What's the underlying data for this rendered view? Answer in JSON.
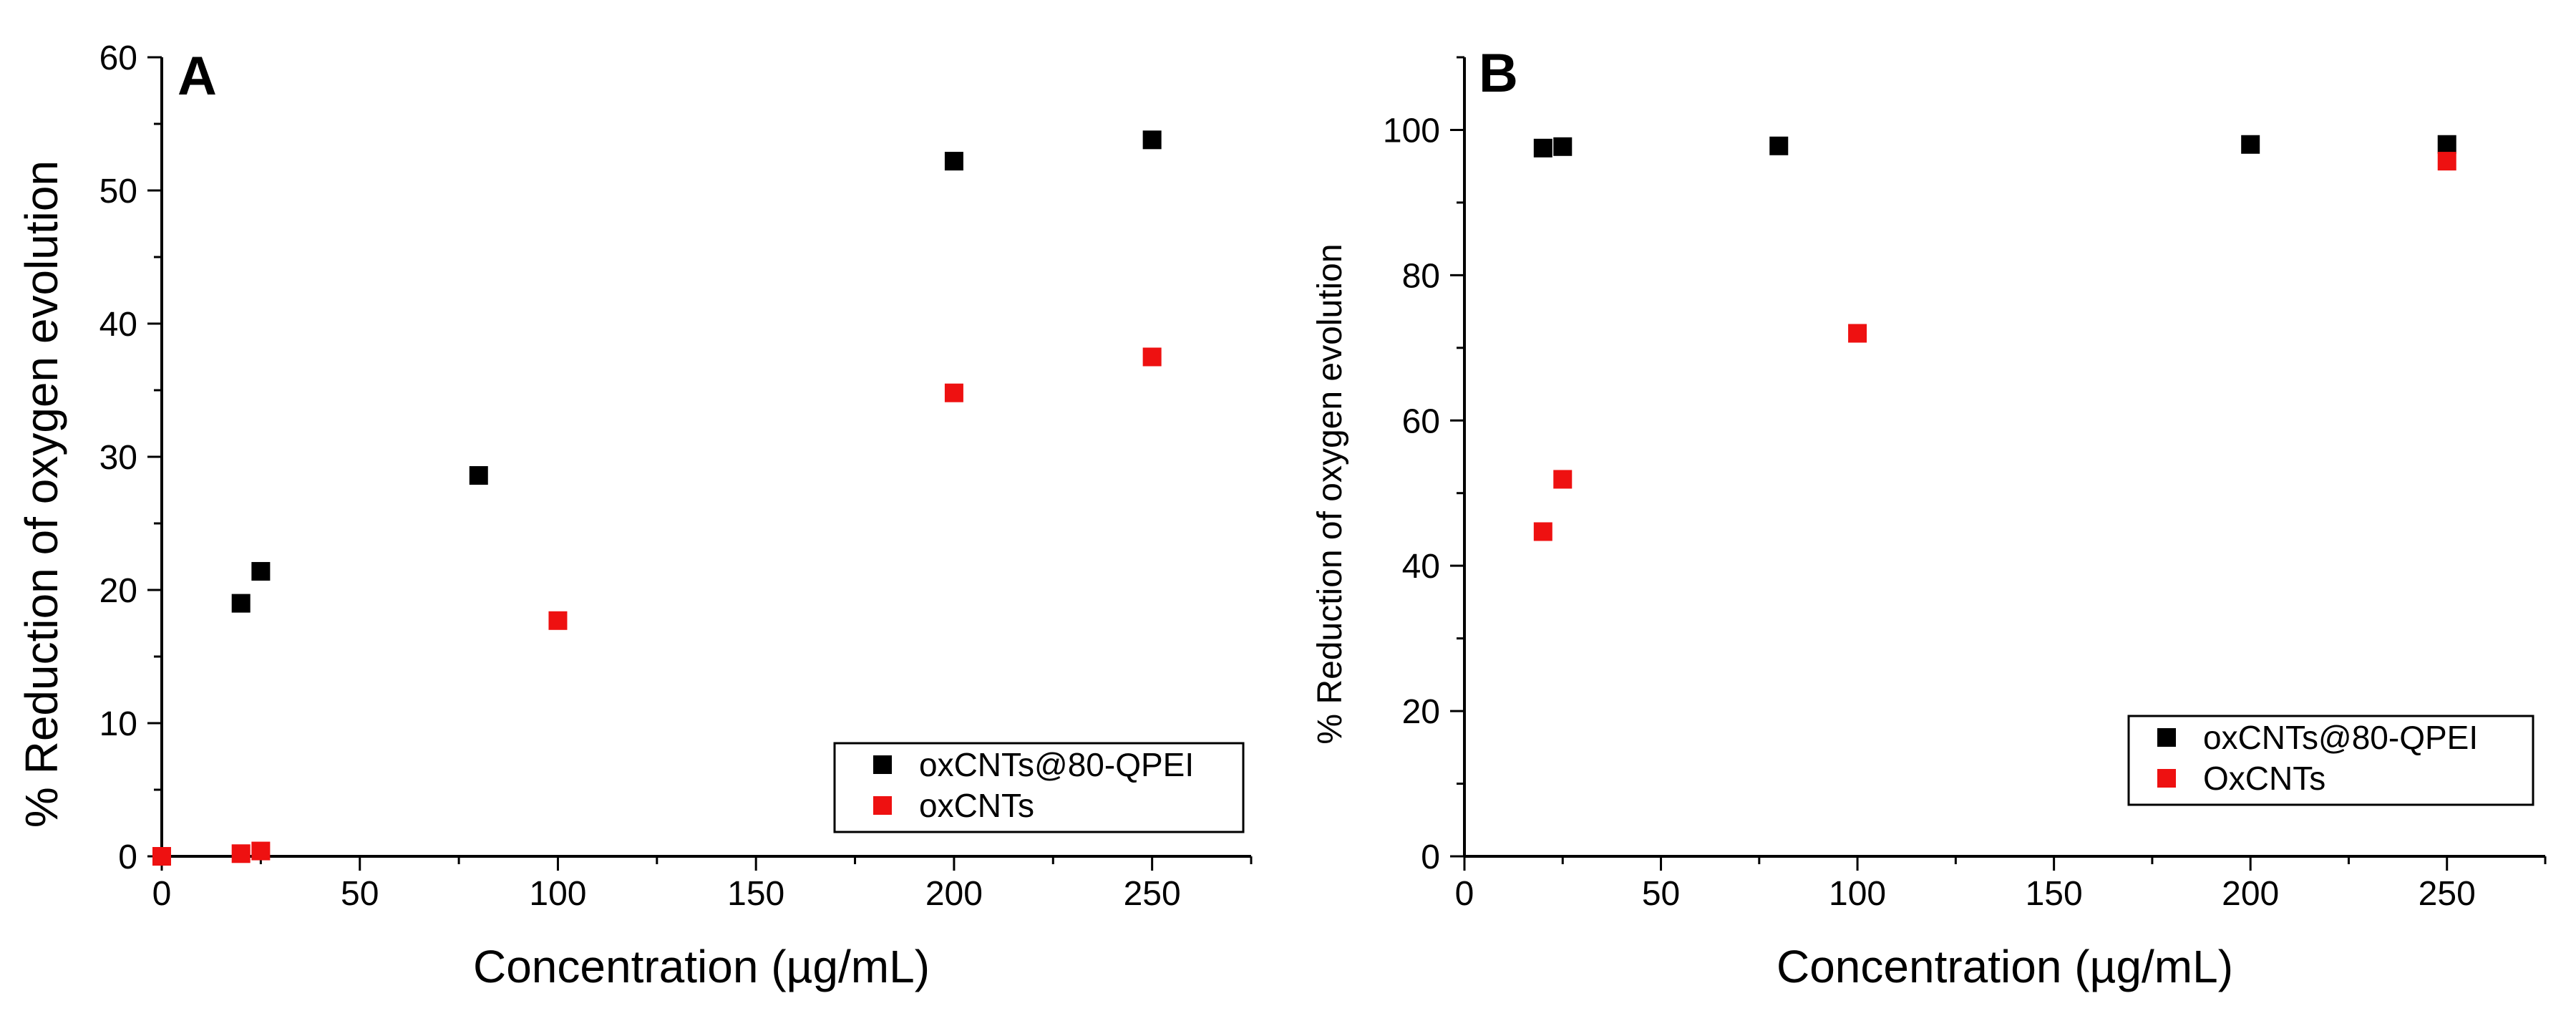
{
  "figure": {
    "panels": [
      "A",
      "B"
    ]
  },
  "colors": {
    "series1": "#000000",
    "series2": "#ee1111",
    "axis": "#000000",
    "background": "#ffffff"
  },
  "chart_data": [
    {
      "type": "scatter",
      "panel_label": "A",
      "title": "",
      "xlabel": "Concentration (µg/mL)",
      "ylabel": "% Reduction of oxygen evolution",
      "xlim": [
        0,
        275
      ],
      "ylim": [
        0,
        60
      ],
      "xticks": [
        0,
        50,
        100,
        150,
        200,
        250
      ],
      "yticks": [
        0,
        10,
        20,
        30,
        40,
        50,
        60
      ],
      "grid": false,
      "legend_position": "bottom-right",
      "series": [
        {
          "name": "oxCNTs@80-QPEI",
          "color": "#000000",
          "marker": "square",
          "x": [
            20,
            25,
            80,
            200,
            250
          ],
          "y": [
            19.0,
            21.4,
            28.6,
            52.2,
            53.8
          ]
        },
        {
          "name": "oxCNTs",
          "color": "#ee1111",
          "marker": "square",
          "x": [
            0,
            20,
            25,
            100,
            200,
            250
          ],
          "y": [
            0.0,
            0.2,
            0.4,
            17.7,
            34.8,
            37.5
          ]
        }
      ]
    },
    {
      "type": "scatter",
      "panel_label": "B",
      "title": "",
      "xlabel": "Concentration (µg/mL)",
      "ylabel": "% Reduction of oxygen evolution",
      "xlim": [
        0,
        275
      ],
      "ylim": [
        0,
        110
      ],
      "xticks": [
        0,
        50,
        100,
        150,
        200,
        250
      ],
      "yticks": [
        0,
        20,
        40,
        60,
        80,
        100
      ],
      "grid": false,
      "legend_position": "bottom-right",
      "series": [
        {
          "name": "oxCNTs@80-QPEI",
          "color": "#000000",
          "marker": "square",
          "x": [
            20,
            25,
            80,
            200,
            250
          ],
          "y": [
            97.5,
            97.7,
            97.8,
            98.0,
            98.0
          ]
        },
        {
          "name": "OxCNTs",
          "color": "#ee1111",
          "marker": "square",
          "x": [
            20,
            25,
            100,
            250
          ],
          "y": [
            44.7,
            51.9,
            72.0,
            95.7
          ]
        }
      ]
    }
  ]
}
